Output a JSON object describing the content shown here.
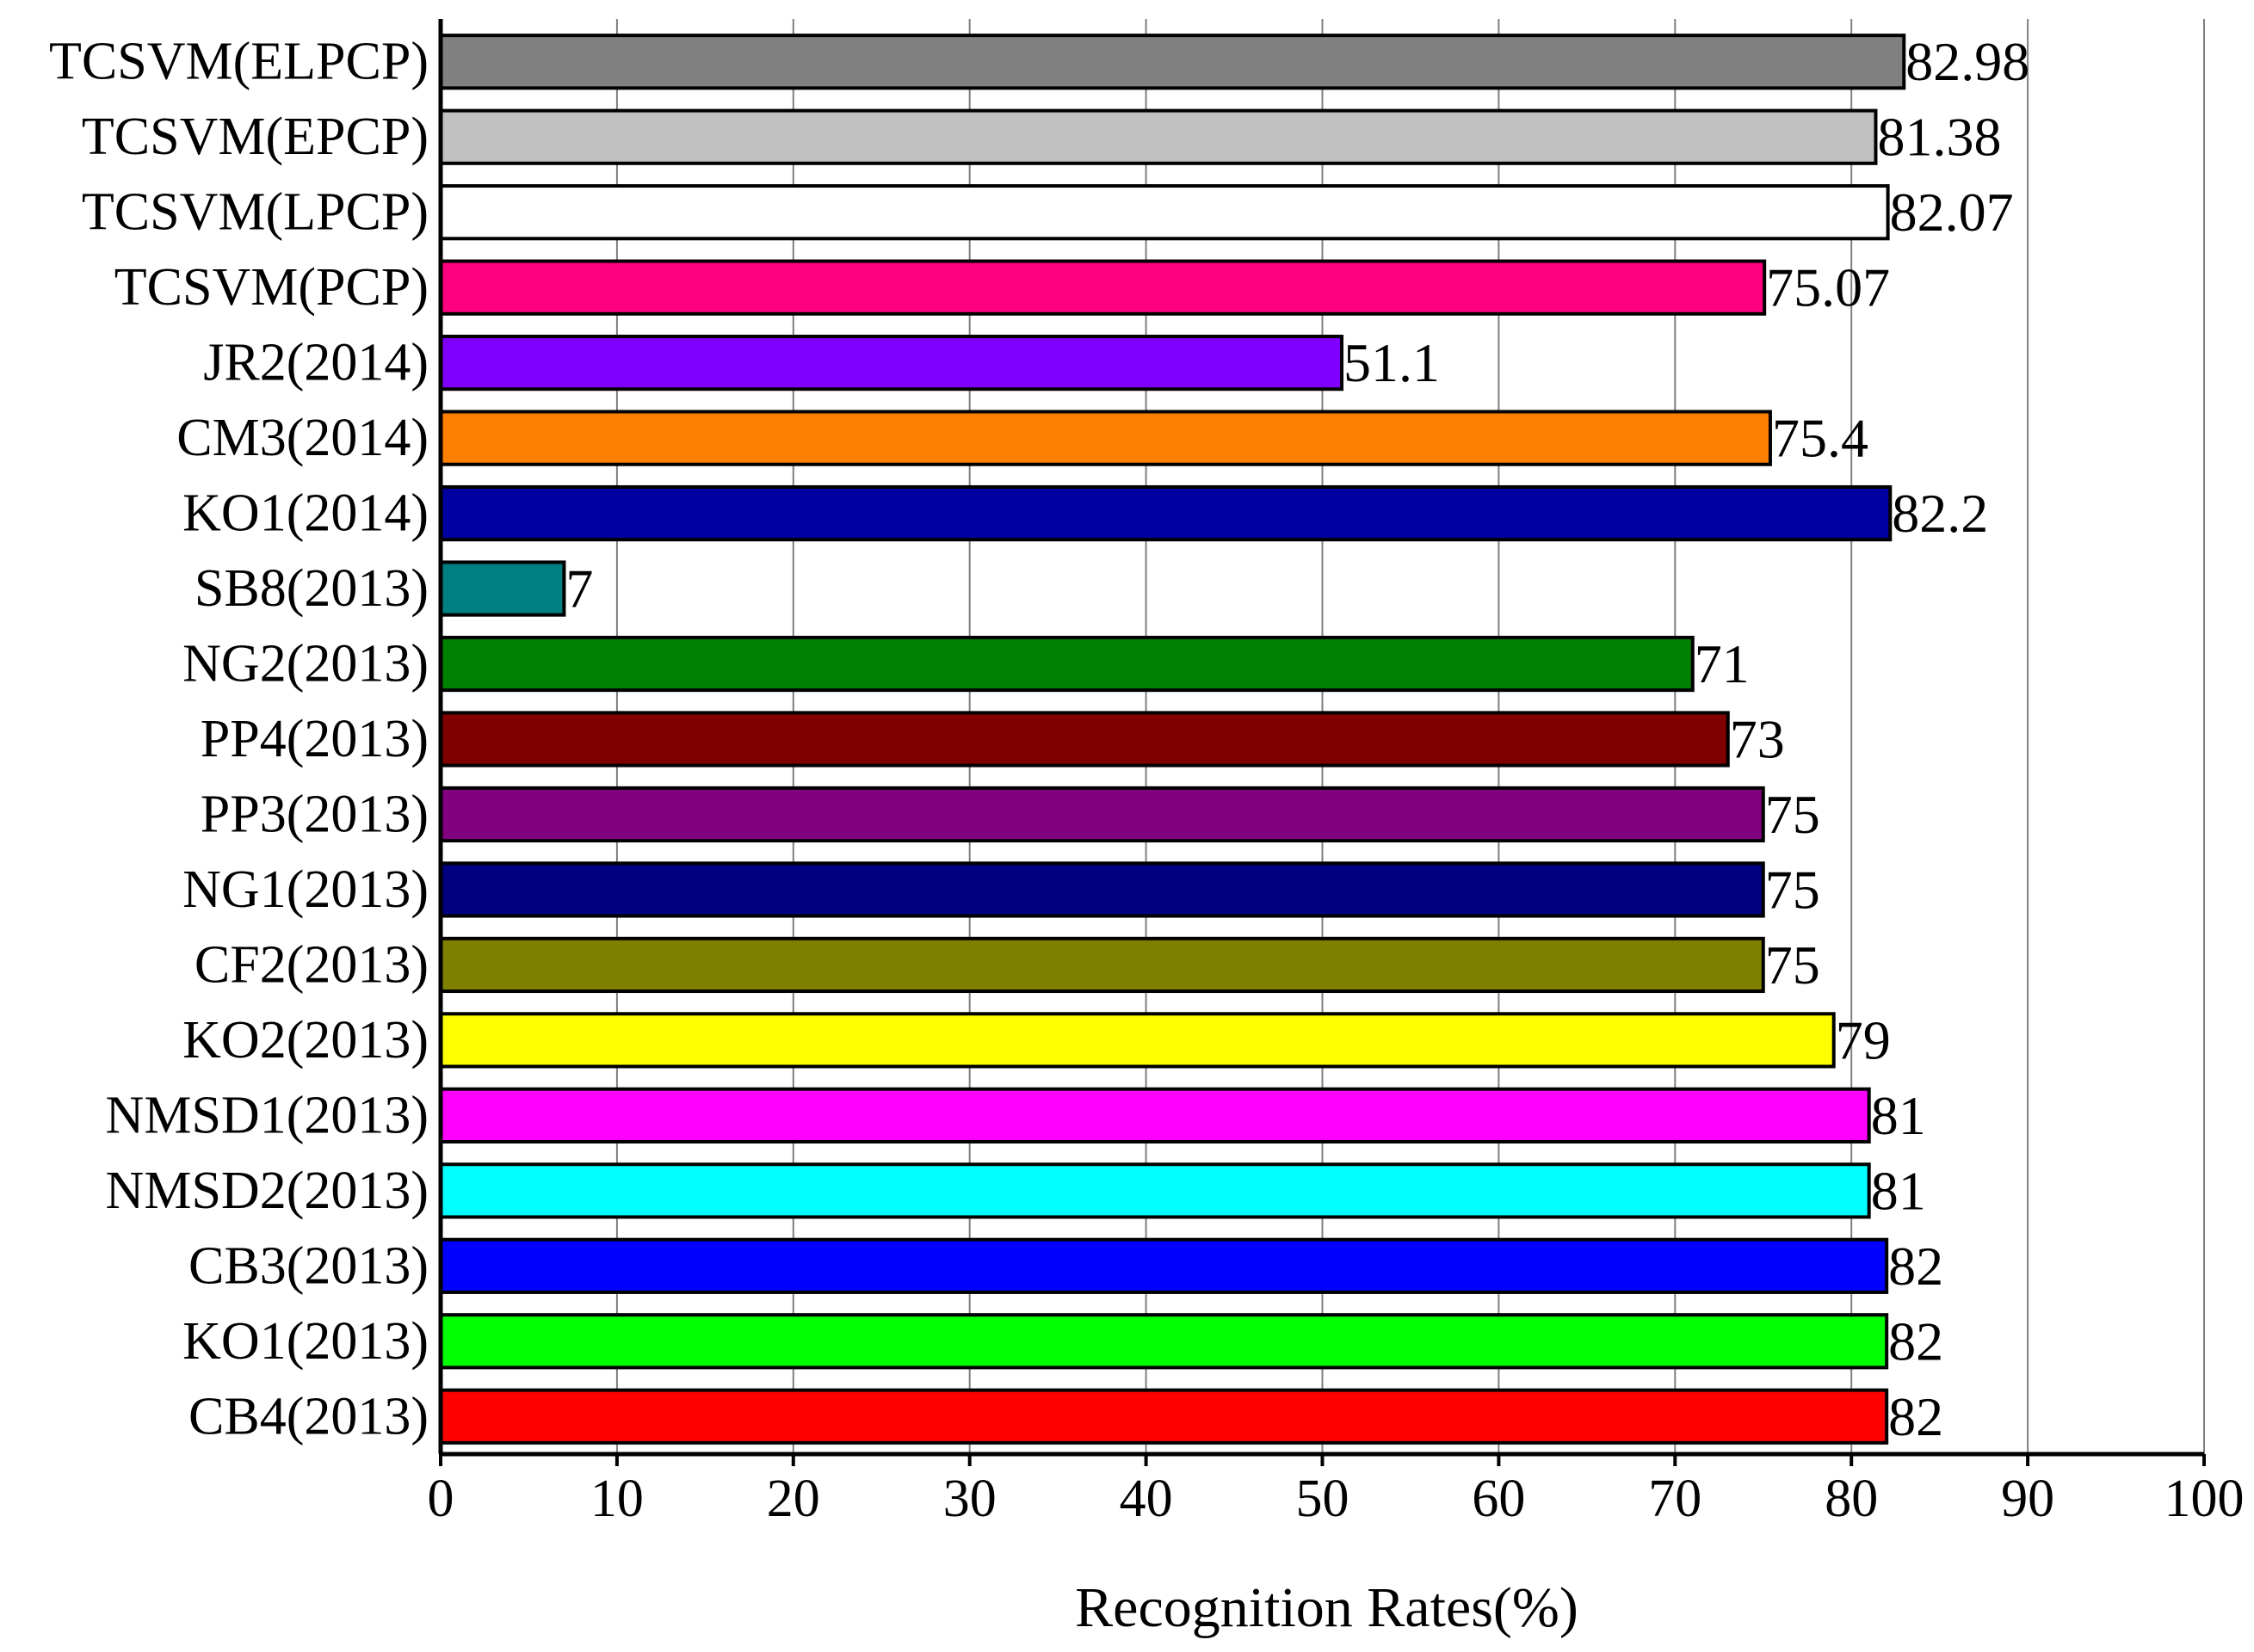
{
  "chart_data": {
    "type": "bar",
    "orientation": "horizontal",
    "title": "",
    "xlabel": "Recognition Rates(%)",
    "ylabel": "",
    "xlim": [
      0,
      100
    ],
    "xticks": [
      "0",
      "10",
      "20",
      "30",
      "40",
      "50",
      "60",
      "70",
      "80",
      "90",
      "100"
    ],
    "grid": "vertical",
    "legend": "none",
    "categories": [
      "TCSVM(ELPCP)",
      "TCSVM(EPCP)",
      "TCSVM(LPCP)",
      "TCSVM(PCP)",
      "JR2(2014)",
      "CM3(2014)",
      "KO1(2014)",
      "SB8(2013)",
      "NG2(2013)",
      "PP4(2013)",
      "PP3(2013)",
      "NG1(2013)",
      "CF2(2013)",
      "KO2(2013)",
      "NMSD1(2013)",
      "NMSD2(2013)",
      "CB3(2013)",
      "KO1(2013)",
      "CB4(2013)"
    ],
    "values": [
      82.98,
      81.38,
      82.07,
      75.07,
      51.1,
      75.4,
      82.2,
      7,
      71,
      73,
      75,
      75,
      75,
      79,
      81,
      81,
      82,
      82,
      82
    ],
    "value_labels": [
      "82.98",
      "81.38",
      "82.07",
      "75.07",
      "51.1",
      "75.4",
      "82.2",
      "7",
      "71",
      "73",
      "75",
      "75",
      "75",
      "79",
      "81",
      "81",
      "82",
      "82",
      "82"
    ],
    "colors": [
      "#808080",
      "#c0c0c0",
      "#ffffff",
      "#ff0080",
      "#8000ff",
      "#ff8000",
      "#0000a0",
      "#008080",
      "#008000",
      "#800000",
      "#800080",
      "#000080",
      "#808000",
      "#ffff00",
      "#ff00ff",
      "#00ffff",
      "#0000ff",
      "#00ff00",
      "#ff0000"
    ]
  }
}
